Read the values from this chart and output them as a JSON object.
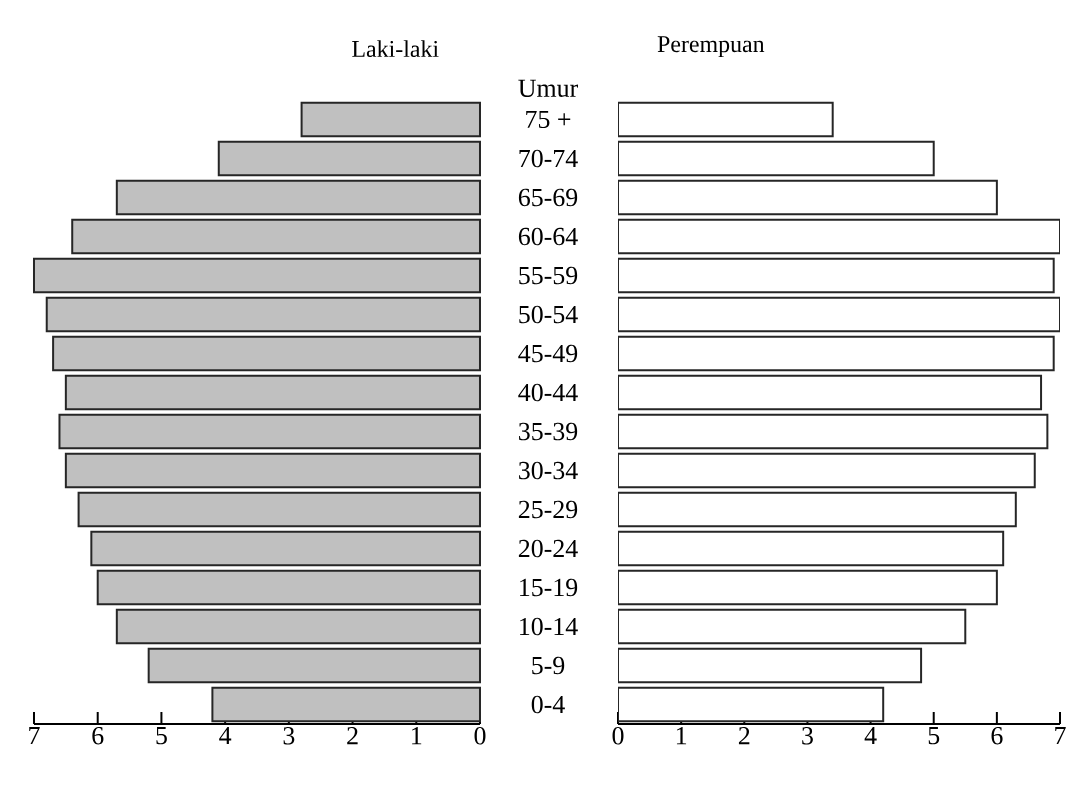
{
  "chart_data": [
    {
      "type": "bar",
      "orientation": "horizontal",
      "title": "Laki-laki",
      "ylabel": "Umur",
      "categories": [
        "75 +",
        "70-74",
        "65-69",
        "60-64",
        "55-59",
        "50-54",
        "45-49",
        "40-44",
        "35-39",
        "30-34",
        "25-29",
        "20-24",
        "15-19",
        "10-14",
        "5-9",
        "0-4"
      ],
      "values": [
        2.8,
        4.1,
        5.7,
        6.4,
        7.0,
        6.8,
        6.7,
        6.5,
        6.6,
        6.5,
        6.3,
        6.1,
        6.0,
        5.7,
        5.2,
        4.2
      ],
      "color": "#c0c0c0",
      "xlim": [
        7,
        0
      ],
      "xticks": [
        7,
        6,
        5,
        4,
        3,
        2,
        1,
        0
      ]
    },
    {
      "type": "bar",
      "orientation": "horizontal",
      "title": "Perempuan",
      "categories": [
        null,
        null,
        null,
        null,
        null,
        null,
        null,
        null,
        null,
        null,
        null,
        null,
        null,
        null,
        null,
        null
      ],
      "values": [
        3.4,
        5.0,
        6.0,
        7.0,
        6.9,
        7.0,
        6.9,
        6.7,
        6.8,
        6.6,
        6.3,
        6.1,
        6.0,
        5.5,
        4.8,
        4.2
      ],
      "color": "#ffffff",
      "xlim": [
        0,
        7
      ],
      "xticks": [
        0,
        1,
        2,
        3,
        4,
        5,
        6,
        7
      ]
    }
  ]
}
